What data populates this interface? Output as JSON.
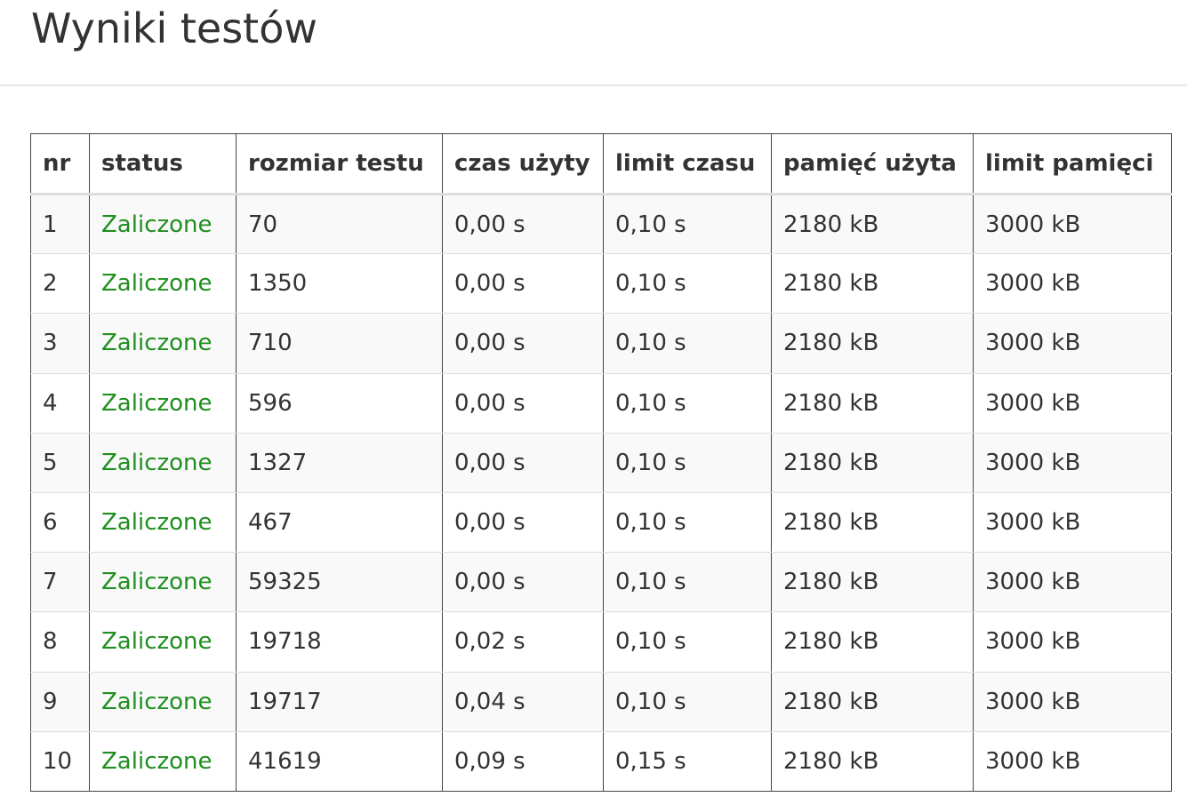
{
  "page": {
    "title": "Wyniki testów"
  },
  "colors": {
    "status_ok": "#1f8f1f",
    "text": "#333333",
    "border": "#444444"
  },
  "table": {
    "headers": {
      "nr": "nr",
      "status": "status",
      "size": "rozmiar testu",
      "time_used": "czas użyty",
      "time_limit": "limit czasu",
      "mem_used": "pamięć użyta",
      "mem_limit": "limit pamięci"
    },
    "rows": [
      {
        "nr": "1",
        "status": "Zaliczone",
        "size": "70",
        "time_used": "0,00 s",
        "time_limit": "0,10 s",
        "mem_used": "2180 kB",
        "mem_limit": "3000 kB"
      },
      {
        "nr": "2",
        "status": "Zaliczone",
        "size": "1350",
        "time_used": "0,00 s",
        "time_limit": "0,10 s",
        "mem_used": "2180 kB",
        "mem_limit": "3000 kB"
      },
      {
        "nr": "3",
        "status": "Zaliczone",
        "size": "710",
        "time_used": "0,00 s",
        "time_limit": "0,10 s",
        "mem_used": "2180 kB",
        "mem_limit": "3000 kB"
      },
      {
        "nr": "4",
        "status": "Zaliczone",
        "size": "596",
        "time_used": "0,00 s",
        "time_limit": "0,10 s",
        "mem_used": "2180 kB",
        "mem_limit": "3000 kB"
      },
      {
        "nr": "5",
        "status": "Zaliczone",
        "size": "1327",
        "time_used": "0,00 s",
        "time_limit": "0,10 s",
        "mem_used": "2180 kB",
        "mem_limit": "3000 kB"
      },
      {
        "nr": "6",
        "status": "Zaliczone",
        "size": "467",
        "time_used": "0,00 s",
        "time_limit": "0,10 s",
        "mem_used": "2180 kB",
        "mem_limit": "3000 kB"
      },
      {
        "nr": "7",
        "status": "Zaliczone",
        "size": "59325",
        "time_used": "0,00 s",
        "time_limit": "0,10 s",
        "mem_used": "2180 kB",
        "mem_limit": "3000 kB"
      },
      {
        "nr": "8",
        "status": "Zaliczone",
        "size": "19718",
        "time_used": "0,02 s",
        "time_limit": "0,10 s",
        "mem_used": "2180 kB",
        "mem_limit": "3000 kB"
      },
      {
        "nr": "9",
        "status": "Zaliczone",
        "size": "19717",
        "time_used": "0,04 s",
        "time_limit": "0,10 s",
        "mem_used": "2180 kB",
        "mem_limit": "3000 kB"
      },
      {
        "nr": "10",
        "status": "Zaliczone",
        "size": "41619",
        "time_used": "0,09 s",
        "time_limit": "0,15 s",
        "mem_used": "2180 kB",
        "mem_limit": "3000 kB"
      }
    ]
  }
}
